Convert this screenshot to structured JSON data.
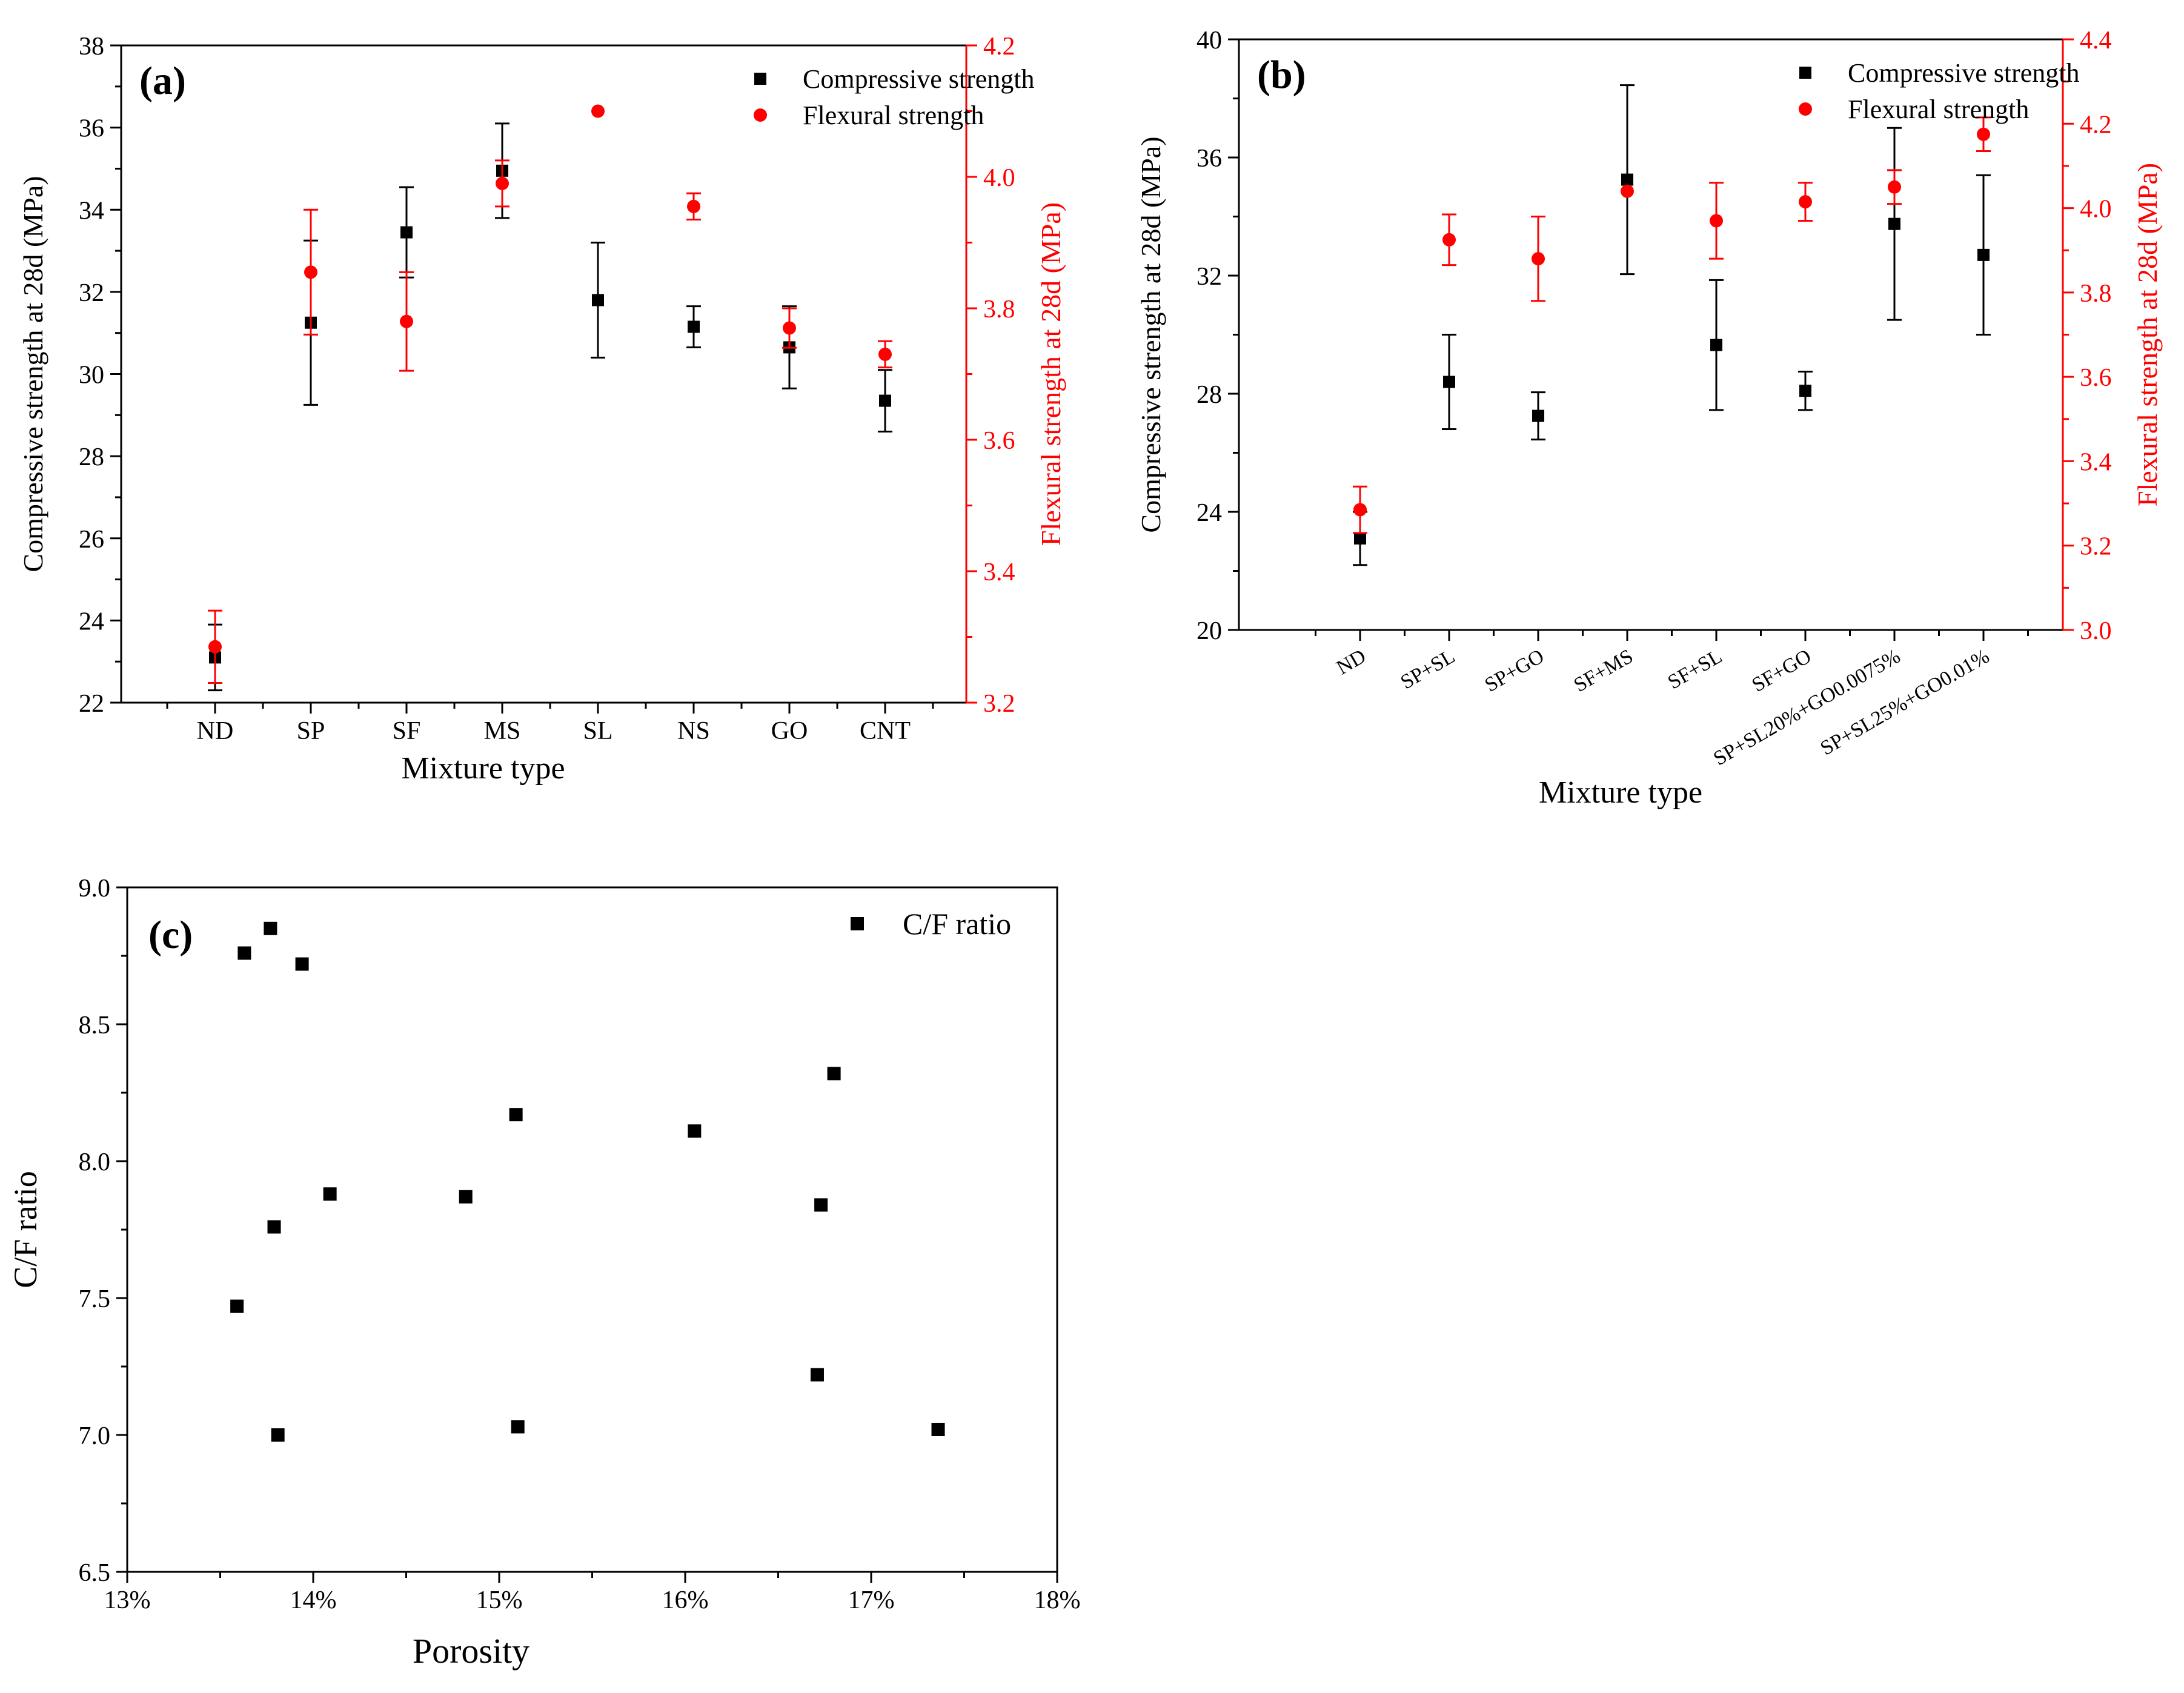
{
  "colors": {
    "compressive": "#000000",
    "flexural": "#ff0000",
    "axis": "#000000"
  },
  "chart_data": [
    {
      "id": "a",
      "panel_label": "(a)",
      "type": "scatter",
      "xlabel": "Mixture type",
      "ylabel_left": "Compressive strength at 28d (MPa)",
      "ylabel_right": "Flexural strength at 28d (MPa)",
      "categories": [
        "ND",
        "SP",
        "SF",
        "MS",
        "SL",
        "NS",
        "GO",
        "CNT"
      ],
      "ylim_left": [
        22,
        38
      ],
      "yticks_left": [
        22,
        24,
        26,
        28,
        30,
        32,
        34,
        36,
        38
      ],
      "ylim_right": [
        3.2,
        4.2
      ],
      "yticks_right": [
        3.2,
        3.4,
        3.6,
        3.8,
        4.0,
        4.2
      ],
      "legend_position": "top-right",
      "series": [
        {
          "name": "Compressive strength",
          "axis": "left",
          "marker": "square",
          "values": [
            23.1,
            31.25,
            33.45,
            34.95,
            31.8,
            31.15,
            30.65,
            29.35
          ],
          "errors": [
            0.8,
            2.0,
            1.1,
            1.15,
            1.4,
            0.5,
            1.0,
            0.75
          ]
        },
        {
          "name": "Flexural strength",
          "axis": "right",
          "marker": "circle",
          "values": [
            3.285,
            3.855,
            3.78,
            3.99,
            4.1,
            3.955,
            3.77,
            3.73
          ],
          "errors": [
            0.055,
            0.095,
            0.075,
            0.035,
            0.0,
            0.02,
            0.03,
            0.02
          ]
        }
      ]
    },
    {
      "id": "b",
      "panel_label": "(b)",
      "type": "scatter",
      "xlabel": "Mixture type",
      "ylabel_left": "Compressive strength at 28d (MPa)",
      "ylabel_right": "Flexural strength at 28d (MPa)",
      "categories": [
        "ND",
        "SP+SL",
        "SP+GO",
        "SF+MS",
        "SF+SL",
        "SF+GO",
        "SP+SL20%+GO0.0075%",
        "SP+SL25%+GO0.01%"
      ],
      "ylim_left": [
        20,
        40
      ],
      "yticks_left": [
        20,
        24,
        28,
        32,
        36,
        40
      ],
      "ylim_right": [
        3.0,
        4.4
      ],
      "yticks_right": [
        3.0,
        3.2,
        3.4,
        3.6,
        3.8,
        4.0,
        4.2,
        4.4
      ],
      "legend_position": "top-right",
      "series": [
        {
          "name": "Compressive strength",
          "axis": "left",
          "marker": "square",
          "values": [
            23.1,
            28.4,
            27.25,
            35.25,
            29.65,
            28.1,
            33.75,
            32.7
          ],
          "errors": [
            0.9,
            1.6,
            0.8,
            3.2,
            2.2,
            0.65,
            3.25,
            2.7
          ]
        },
        {
          "name": "Flexural strength",
          "axis": "right",
          "marker": "circle",
          "values": [
            3.285,
            3.925,
            3.88,
            4.04,
            3.97,
            4.015,
            4.05,
            4.175
          ],
          "errors": [
            0.055,
            0.06,
            0.1,
            0.0,
            0.09,
            0.045,
            0.04,
            0.04
          ]
        }
      ]
    },
    {
      "id": "c",
      "panel_label": "(c)",
      "type": "scatter",
      "xlabel": "Porosity",
      "ylabel": "C/F ratio",
      "xlim": [
        13,
        18
      ],
      "xticks": [
        13,
        14,
        15,
        16,
        17,
        18
      ],
      "xtick_labels": [
        "13%",
        "14%",
        "15%",
        "16%",
        "17%",
        "18%"
      ],
      "ylim": [
        6.5,
        9.0
      ],
      "yticks": [
        6.5,
        7.0,
        7.5,
        8.0,
        8.5,
        9.0
      ],
      "ytick_labels": [
        "6.5",
        "7.0",
        "7.5",
        "8.0",
        "8.5",
        "9.0"
      ],
      "legend_position": "top-right",
      "series": [
        {
          "name": "C/F ratio",
          "marker": "square",
          "x": [
            13.63,
            13.77,
            13.94,
            13.79,
            14.09,
            13.59,
            13.81,
            14.82,
            15.09,
            15.1,
            16.05,
            16.8,
            16.73,
            16.71,
            17.36
          ],
          "y": [
            8.76,
            8.85,
            8.72,
            7.76,
            7.88,
            7.47,
            7.0,
            7.87,
            8.17,
            7.03,
            8.11,
            8.32,
            7.84,
            7.22,
            7.02
          ]
        }
      ]
    }
  ]
}
